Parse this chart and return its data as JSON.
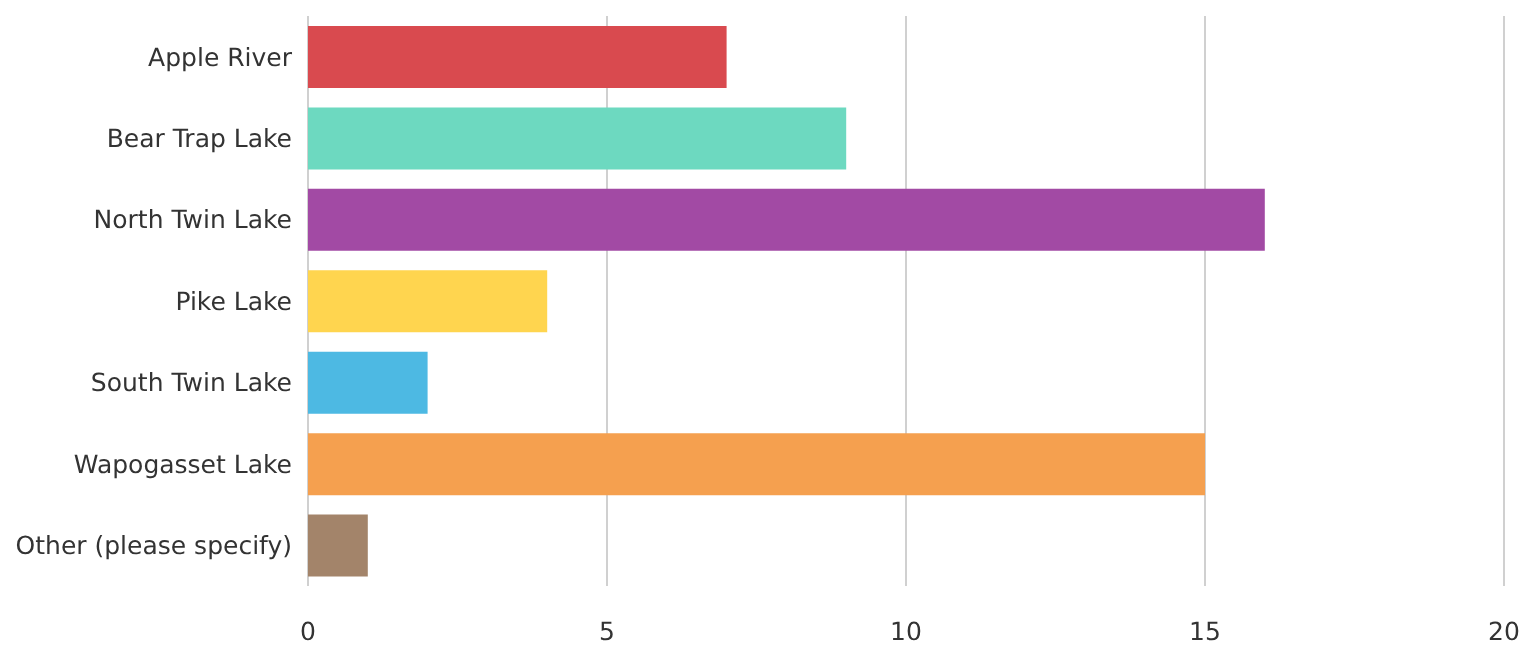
{
  "chart_data": {
    "type": "bar",
    "orientation": "horizontal",
    "categories": [
      "Apple River",
      "Bear Trap Lake",
      "North Twin Lake",
      "Pike Lake",
      "South Twin Lake",
      "Wapogasset Lake",
      "Other (please specify)"
    ],
    "values": [
      7,
      9,
      16,
      4,
      2,
      15,
      1
    ],
    "colors": [
      "#d94a4f",
      "#6dd9c0",
      "#a24aa4",
      "#ffd54f",
      "#4db9e3",
      "#f5a04f",
      "#a3846a"
    ],
    "xlim": [
      0,
      20
    ],
    "xticks": [
      0,
      5,
      10,
      15,
      20
    ],
    "grid": "x"
  }
}
